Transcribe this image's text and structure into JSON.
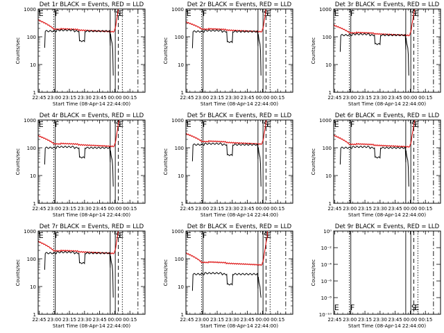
{
  "colors": {
    "events": "#000000",
    "lld": "#dd1111",
    "axes": "#000000",
    "background": "#ffffff"
  },
  "shared": {
    "ylabel": "Counts/sec",
    "xlabel": "Start Time (08-Apr-14 22:44:00)",
    "xticks": [
      "22:45",
      "23:00",
      "23:15",
      "23:30",
      "23:45",
      "00:00",
      "00:15"
    ],
    "xtick_minutes": [
      1,
      16,
      31,
      46,
      61,
      76,
      91
    ],
    "xlim_minutes": [
      0,
      106
    ],
    "ylim": [
      1,
      1000
    ],
    "yscale": "log",
    "yticks": [
      "1",
      "10",
      "100",
      "1000"
    ],
    "markers": [
      {
        "label": "E",
        "minute": 0.5
      },
      {
        "label": "F",
        "minute": 16.5
      },
      {
        "label": "S",
        "minute": 77
      },
      {
        "label": "E",
        "minute": 80
      }
    ],
    "vlines": [
      {
        "minute": 15.5,
        "style": "dotted"
      },
      {
        "minute": 17,
        "style": "solid"
      },
      {
        "minute": 71.5,
        "style": "solid"
      },
      {
        "minute": 76.5,
        "style": "solid"
      },
      {
        "minute": 79.5,
        "style": "dashed"
      },
      {
        "minute": 83.5,
        "style": "dotted"
      },
      {
        "minute": 99,
        "style": "dashdot"
      }
    ]
  },
  "chart_data": [
    {
      "type": "line",
      "title": "Det 1r BLACK = Events, RED = LLD",
      "events_level": 160,
      "events_dip": 70,
      "lld_level": 190,
      "lld_start": 400
    },
    {
      "type": "line",
      "title": "Det 2r BLACK = Events, RED = LLD",
      "events_level": 155,
      "events_dip": 65,
      "lld_level": 190,
      "lld_start": 340
    },
    {
      "type": "line",
      "title": "Det 3r BLACK = Events, RED = LLD",
      "events_level": 115,
      "events_dip": 55,
      "lld_level": 140,
      "lld_start": 260
    },
    {
      "type": "line",
      "title": "Det 4r BLACK = Events, RED = LLD",
      "events_level": 100,
      "events_dip": 45,
      "lld_level": 140,
      "lld_start": 270
    },
    {
      "type": "line",
      "title": "Det 5r BLACK = Events, RED = LLD",
      "events_level": 130,
      "events_dip": 55,
      "lld_level": 170,
      "lld_start": 320
    },
    {
      "type": "line",
      "title": "Det 6r BLACK = Events, RED = LLD",
      "events_level": 100,
      "events_dip": 45,
      "lld_level": 135,
      "lld_start": 280
    },
    {
      "type": "line",
      "title": "Det 7r BLACK = Events, RED = LLD",
      "events_level": 160,
      "events_dip": 70,
      "lld_level": 195,
      "lld_start": 420
    },
    {
      "type": "line",
      "title": "Det 8r BLACK = Events, RED = LLD",
      "events_level": 28,
      "events_dip": 12,
      "lld_level": 75,
      "lld_start": 160
    },
    {
      "type": "line",
      "title": "Det 9r BLACK = Events, RED = LLD",
      "empty": true,
      "ylim": [
        1e-10,
        1
      ],
      "yticks": [
        "10⁻¹⁰",
        "10⁻⁸",
        "10⁻⁶",
        "10⁻⁴",
        "10⁻²",
        "10⁰"
      ]
    }
  ]
}
